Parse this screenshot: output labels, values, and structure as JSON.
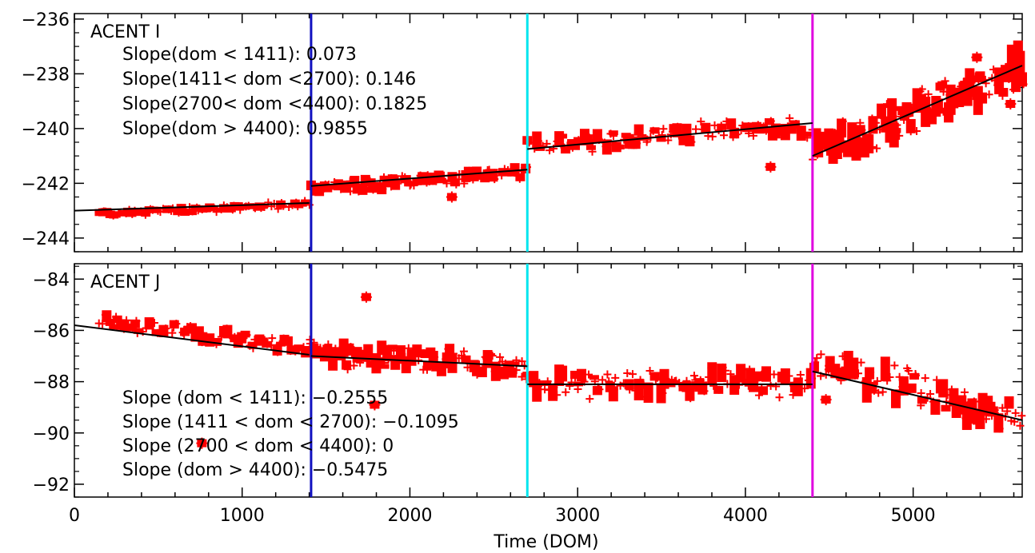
{
  "chart_data": [
    {
      "type": "scatter",
      "panel_label": "ACENT I",
      "xlabel": "",
      "ylabel": "",
      "xlim": [
        0,
        5650
      ],
      "ylim": [
        -244.5,
        -235.8
      ],
      "y_ticks": [
        -236,
        -238,
        -240,
        -242,
        -244
      ],
      "y_tick_labels": [
        "−236",
        "−238",
        "−240",
        "−242",
        "−244"
      ],
      "x_ticks": [
        0,
        1000,
        2000,
        3000,
        4000,
        5000
      ],
      "grid": false,
      "vertical_lines": [
        {
          "x": 1411,
          "color": "#1010c0"
        },
        {
          "x": 2700,
          "color": "#00e5ee"
        },
        {
          "x": 4400,
          "color": "#e000e0"
        }
      ],
      "annotations": [
        "Slope(dom < 1411): 0.073",
        "Slope(1411< dom <2700): 0.146",
        "Slope(2700< dom <4400): 0.1825",
        "Slope(dom > 4400): 0.9855"
      ],
      "fit_segments": [
        {
          "x": [
            0,
            1400
          ],
          "y": [
            -243.0,
            -242.72
          ]
        },
        {
          "x": [
            1411,
            2700
          ],
          "y": [
            -242.1,
            -241.5
          ]
        },
        {
          "x": [
            2700,
            4400
          ],
          "y": [
            -240.75,
            -239.8
          ]
        },
        {
          "x": [
            4400,
            5650
          ],
          "y": [
            -241.0,
            -237.7
          ]
        }
      ],
      "point_groups": [
        {
          "x0": 150,
          "x1": 1400,
          "y0": -243.1,
          "y1": -242.75,
          "spread": 0.2,
          "n": 60
        },
        {
          "x0": 1411,
          "x1": 2690,
          "y0": -242.2,
          "y1": -241.6,
          "spread": 0.4,
          "n": 80
        },
        {
          "x0": 2700,
          "x1": 4390,
          "y0": -240.6,
          "y1": -239.9,
          "spread": 0.6,
          "n": 90
        },
        {
          "x0": 4410,
          "x1": 5650,
          "y0": -240.9,
          "y1": -237.8,
          "spread": 1.2,
          "n": 100
        }
      ],
      "outliers": [
        [
          2250,
          -242.5
        ],
        [
          4150,
          -241.4
        ],
        [
          5380,
          -237.4
        ],
        [
          5580,
          -239.1
        ]
      ],
      "color": "#ff0000"
    },
    {
      "type": "scatter",
      "panel_label": "ACENT J",
      "xlabel": "Time (DOM)",
      "ylabel": "",
      "xlim": [
        0,
        5650
      ],
      "ylim": [
        -92.5,
        -83.4
      ],
      "y_ticks": [
        -84,
        -86,
        -88,
        -90,
        -92
      ],
      "y_tick_labels": [
        "−84",
        "−86",
        "−88",
        "−90",
        "−92"
      ],
      "x_ticks": [
        0,
        1000,
        2000,
        3000,
        4000,
        5000
      ],
      "x_tick_labels": [
        "0",
        "1000",
        "2000",
        "3000",
        "4000",
        "5000"
      ],
      "grid": false,
      "vertical_lines": [
        {
          "x": 1411,
          "color": "#1010c0"
        },
        {
          "x": 2700,
          "color": "#00e5ee"
        },
        {
          "x": 4400,
          "color": "#e000e0"
        }
      ],
      "annotations": [
        "Slope (dom < 1411): −0.2555",
        "Slope (1411 < dom < 2700): −0.1095",
        "Slope (2700 < dom < 4400): 0",
        "Slope (dom > 4400): −0.5475"
      ],
      "fit_segments": [
        {
          "x": [
            0,
            1400
          ],
          "y": [
            -85.8,
            -86.95
          ]
        },
        {
          "x": [
            1411,
            2700
          ],
          "y": [
            -87.0,
            -87.4
          ]
        },
        {
          "x": [
            2700,
            4400
          ],
          "y": [
            -88.1,
            -88.1
          ]
        },
        {
          "x": [
            4400,
            5650
          ],
          "y": [
            -87.6,
            -89.5
          ]
        }
      ],
      "point_groups": [
        {
          "x0": 150,
          "x1": 1400,
          "y0": -85.6,
          "y1": -86.7,
          "spread": 0.5,
          "n": 60
        },
        {
          "x0": 1411,
          "x1": 2690,
          "y0": -86.9,
          "y1": -87.3,
          "spread": 0.8,
          "n": 80
        },
        {
          "x0": 2700,
          "x1": 4390,
          "y0": -88.1,
          "y1": -88.1,
          "spread": 0.9,
          "n": 90
        },
        {
          "x0": 4410,
          "x1": 5650,
          "y0": -87.3,
          "y1": -89.4,
          "spread": 1.1,
          "n": 80
        }
      ],
      "outliers": [
        [
          1740,
          -84.7
        ],
        [
          1790,
          -88.9
        ],
        [
          760,
          -90.4
        ],
        [
          4480,
          -88.7
        ]
      ],
      "color": "#ff0000"
    }
  ]
}
